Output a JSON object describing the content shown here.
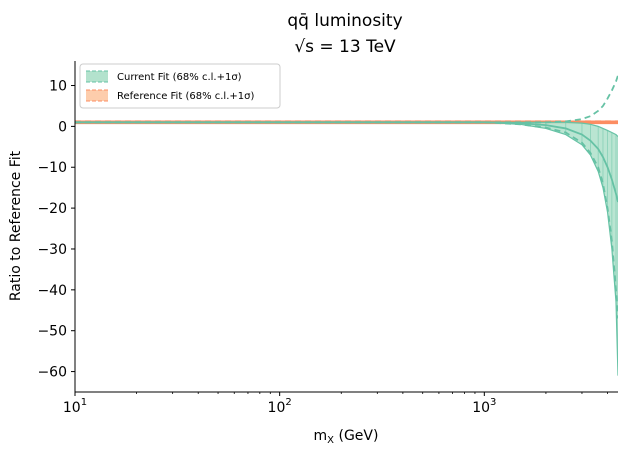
{
  "chart_data": {
    "type": "area",
    "title_line1": "qq̄ luminosity",
    "title_line2": "√s = 13 TeV",
    "xlabel": "m",
    "xlabel_sub": "X",
    "xlabel_unit": " (GeV)",
    "ylabel": "Ratio to Reference Fit",
    "xscale": "log",
    "xlim": [
      10,
      4500
    ],
    "ylim": [
      -65,
      16
    ],
    "grid": false,
    "legend_position": "top-left",
    "x_ticks": [
      {
        "value": 10,
        "base": "10",
        "exp": "1"
      },
      {
        "value": 100,
        "base": "10",
        "exp": "2"
      },
      {
        "value": 1000,
        "base": "10",
        "exp": "3"
      }
    ],
    "y_ticks": [
      10,
      0,
      -10,
      -20,
      -30,
      -40,
      -50,
      -60
    ],
    "y_tick_labels": [
      "10",
      "0",
      "−10",
      "−20",
      "−30",
      "−40",
      "−50",
      "−60"
    ],
    "x": [
      10,
      100,
      500,
      1000,
      1500,
      2000,
      2500,
      3000,
      3300,
      3600,
      3800,
      4000,
      4200,
      4400,
      4500
    ],
    "series": [
      {
        "name": "Current Fit (68% c.l.+1σ)",
        "color": "#66c2a5",
        "fill": "#b3e2cd",
        "central": [
          1,
          1,
          1,
          1,
          0.8,
          0.3,
          -0.5,
          -2,
          -3.5,
          -5.5,
          -7.5,
          -10,
          -13,
          -16.5,
          -18.5
        ],
        "upper": [
          1,
          1,
          1,
          1,
          1,
          1,
          1,
          0.8,
          0.5,
          0,
          -0.5,
          -1,
          -1.5,
          -2,
          -2.5
        ],
        "lower": [
          1,
          1,
          1,
          1,
          0.5,
          -0.5,
          -2,
          -4.5,
          -7,
          -11,
          -15,
          -21,
          -30,
          -43,
          -61
        ],
        "dashed_upper": [
          1,
          1,
          1,
          1,
          1,
          1,
          1.2,
          1.8,
          2.5,
          3.8,
          5,
          6.8,
          8.8,
          11,
          12.5
        ],
        "dashed_lower": [
          1,
          1,
          1,
          1,
          0.5,
          -0.3,
          -1.5,
          -4,
          -6.5,
          -10,
          -14,
          -20,
          -28,
          -40,
          -47
        ]
      },
      {
        "name": "Reference Fit (68% c.l.+1σ)",
        "color": "#fc8d62",
        "fill": "#fdcdac",
        "central": [
          1,
          1,
          1,
          1,
          1,
          1,
          1,
          1,
          1,
          1,
          1,
          1,
          1,
          1,
          1
        ],
        "upper": [
          1.3,
          1.3,
          1.3,
          1.3,
          1.3,
          1.3,
          1.3,
          1.3,
          1.3,
          1.3,
          1.3,
          1.3,
          1.3,
          1.3,
          1.3
        ],
        "lower": [
          0.7,
          0.7,
          0.7,
          0.7,
          0.7,
          0.7,
          0.7,
          0.7,
          0.7,
          0.7,
          0.7,
          0.7,
          0.7,
          0.7,
          0.7
        ]
      }
    ]
  }
}
